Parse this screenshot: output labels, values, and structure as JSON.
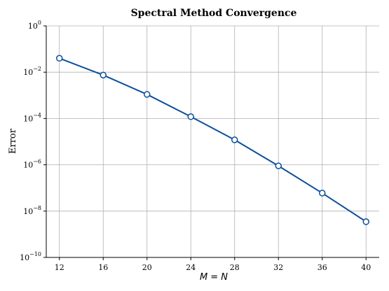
{
  "chart_data": {
    "type": "line",
    "title": "Spectral Method Convergence",
    "xlabel": "M = N",
    "ylabel": "Error",
    "x": [
      12,
      16,
      20,
      24,
      28,
      32,
      36,
      40
    ],
    "series": [
      {
        "values": [
          0.04,
          0.0075,
          0.0011,
          0.00012,
          1.2e-05,
          9e-07,
          6e-08,
          3.5e-09
        ]
      }
    ],
    "xlim": [
      10.8,
      41.2
    ],
    "ylim": [
      1e-10,
      1
    ],
    "yscale": "log",
    "xticks": [
      12,
      16,
      20,
      24,
      28,
      32,
      36,
      40
    ],
    "ytick_exponents": [
      0,
      -2,
      -4,
      -6,
      -8,
      -10
    ],
    "ytick_base": "10",
    "grid": true,
    "legend": "none",
    "colors": {
      "series": "#0b4f9c",
      "marker_face": "#ffffff",
      "grid": "#b0b0b0"
    }
  }
}
